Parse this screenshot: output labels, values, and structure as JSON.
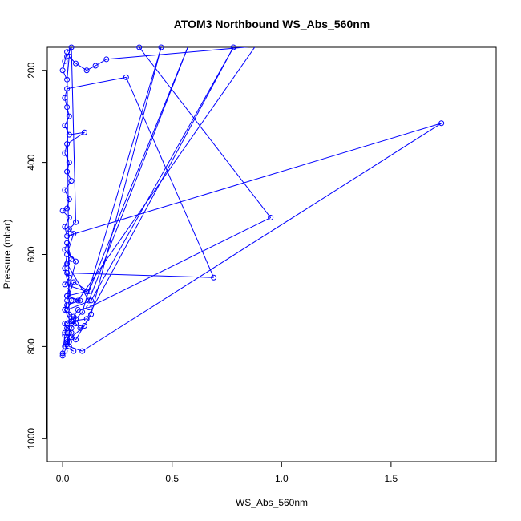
{
  "chart_data": {
    "type": "scatter",
    "title": "ATOM3 Northbound WS_Abs_560nm",
    "xlabel": "WS_Abs_560nm",
    "ylabel": "Pressure (mbar)",
    "xlim": [
      -0.07,
      1.98
    ],
    "ylim": [
      1050,
      150
    ],
    "y_reversed": true,
    "x_ticks": [
      0.0,
      0.5,
      1.0,
      1.5
    ],
    "x_tick_labels": [
      "0.0",
      "0.5",
      "1.0",
      "1.5"
    ],
    "y_ticks": [
      200,
      400,
      600,
      800,
      1000
    ],
    "y_tick_labels": [
      "200",
      "400",
      "600",
      "800",
      "1000"
    ],
    "grid": false,
    "legend": "none",
    "series": [
      {
        "color": "#0000ff",
        "marker": "open-circle",
        "connected": true,
        "points": [
          [
            0.05,
            810
          ],
          [
            0.01,
            800
          ],
          [
            0.02,
            790
          ],
          [
            0.03,
            770
          ],
          [
            0.04,
            760
          ],
          [
            0.06,
            740
          ],
          [
            0.03,
            730
          ],
          [
            0.01,
            720
          ],
          [
            0.02,
            710
          ],
          [
            0.08,
            700
          ],
          [
            0.02,
            690
          ],
          [
            0.11,
            680
          ],
          [
            0.01,
            665
          ],
          [
            0.03,
            650
          ],
          [
            0.02,
            640
          ],
          [
            0.69,
            650
          ],
          [
            0.29,
            215
          ],
          [
            0.02,
            240
          ],
          [
            0.01,
            260
          ],
          [
            0.02,
            280
          ],
          [
            0.03,
            300
          ],
          [
            0.01,
            320
          ],
          [
            0.03,
            340
          ],
          [
            0.1,
            335
          ],
          [
            0.02,
            360
          ],
          [
            0.01,
            380
          ],
          [
            0.03,
            400
          ],
          [
            0.02,
            420
          ],
          [
            0.04,
            440
          ],
          [
            0.01,
            460
          ],
          [
            0.03,
            480
          ],
          [
            0.02,
            500
          ],
          [
            0.0,
            505
          ],
          [
            0.03,
            520
          ],
          [
            0.01,
            540
          ],
          [
            0.02,
            560
          ],
          [
            1.73,
            315
          ],
          [
            0.09,
            810
          ],
          [
            0.03,
            800
          ],
          [
            0.02,
            785
          ],
          [
            0.04,
            770
          ],
          [
            0.01,
            750
          ],
          [
            0.05,
            735
          ],
          [
            0.07,
            720
          ],
          [
            0.12,
            715
          ],
          [
            0.95,
            520
          ],
          [
            0.35,
            150
          ],
          [
            0.06,
            140
          ],
          [
            0.02,
            160
          ],
          [
            0.01,
            180
          ],
          [
            0.0,
            200
          ],
          [
            0.02,
            220
          ],
          [
            0.03,
            170
          ],
          [
            0.06,
            185
          ],
          [
            0.11,
            200
          ],
          [
            0.15,
            190
          ],
          [
            0.2,
            176
          ],
          [
            0.88,
            148
          ],
          [
            0.07,
            700
          ],
          [
            0.02,
            690
          ],
          [
            0.03,
            670
          ],
          [
            0.06,
            615
          ],
          [
            0.01,
            590
          ],
          [
            0.02,
            575
          ],
          [
            0.04,
            610
          ],
          [
            0.02,
            620
          ],
          [
            0.12,
            700
          ],
          [
            0.58,
            140
          ],
          [
            0.12,
            680
          ],
          [
            0.05,
            660
          ],
          [
            0.02,
            700
          ],
          [
            0.01,
            720
          ],
          [
            0.03,
            740
          ],
          [
            0.06,
            750
          ],
          [
            0.08,
            760
          ],
          [
            0.1,
            755
          ],
          [
            0.04,
            780
          ],
          [
            0.06,
            785
          ],
          [
            0.13,
            730
          ],
          [
            0.45,
            150
          ],
          [
            0.09,
            725
          ],
          [
            0.05,
            745
          ],
          [
            0.02,
            760
          ],
          [
            0.01,
            775
          ],
          [
            0.0,
            815
          ],
          [
            0.0,
            820
          ],
          [
            0.01,
            810
          ],
          [
            0.02,
            795
          ],
          [
            0.03,
            780
          ],
          [
            0.02,
            170
          ],
          [
            0.04,
            150
          ],
          [
            0.06,
            530
          ],
          [
            0.03,
            545
          ],
          [
            0.05,
            555
          ],
          [
            0.02,
            600
          ],
          [
            0.01,
            630
          ],
          [
            0.04,
            700
          ],
          [
            0.02,
            720
          ],
          [
            0.13,
            700
          ],
          [
            0.78,
            150
          ],
          [
            0.11,
            740
          ],
          [
            0.04,
            745
          ],
          [
            0.02,
            750
          ],
          [
            0.01,
            770
          ],
          [
            0.03,
            790
          ]
        ]
      }
    ]
  }
}
